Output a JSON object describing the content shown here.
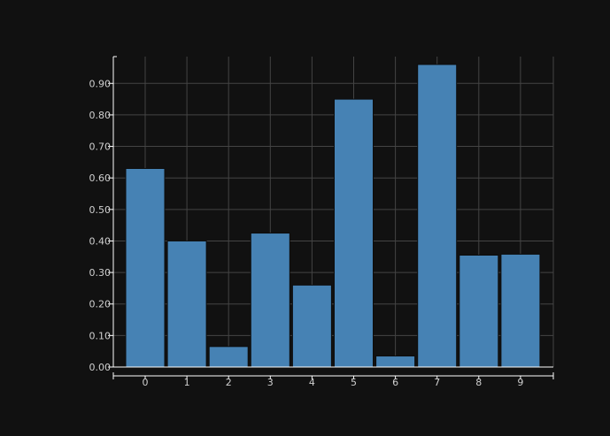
{
  "chart_data": {
    "type": "bar",
    "title": "",
    "xlabel": "",
    "ylabel": "",
    "categories": [
      "0",
      "1",
      "2",
      "3",
      "4",
      "5",
      "6",
      "7",
      "8",
      "9"
    ],
    "series": [
      {
        "values": [
          0.63,
          0.4,
          0.065,
          0.425,
          0.26,
          0.85,
          0.035,
          0.96,
          0.355,
          0.358
        ]
      }
    ],
    "yticks": [
      "0.00",
      "0.10",
      "0.20",
      "0.30",
      "0.40",
      "0.50",
      "0.60",
      "0.70",
      "0.80",
      "0.90"
    ],
    "ylim": [
      0,
      0.985
    ],
    "grid": true,
    "colors": {
      "background": "#111111",
      "bar": "#4682b4",
      "bar_edge": "#0d0d0d",
      "grid": "#444444",
      "axis": "#ffffff",
      "tick_text": "#cfcfcf"
    }
  }
}
